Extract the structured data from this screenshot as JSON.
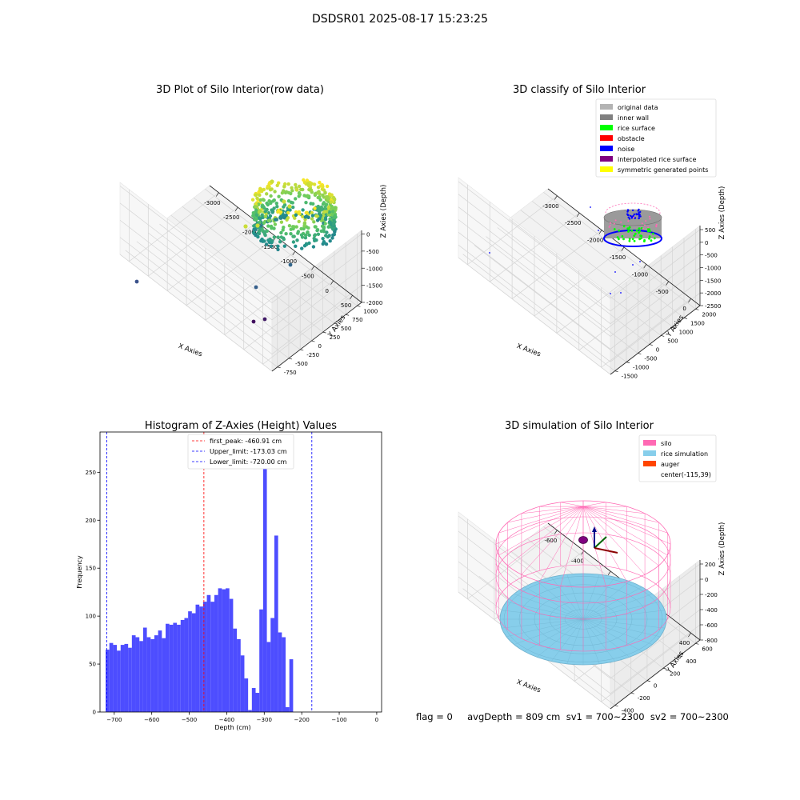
{
  "suptitle": "DSDSR01 2025-08-17 15:23:25",
  "status_line": "flag = 0     avgDepth = 809 cm  sv1 = 700~2300  sv2 = 700~2300",
  "chart_data": [
    {
      "type": "scatter3d",
      "title": "3D Plot of Silo Interior(row data)",
      "xlabel": "X Axies",
      "ylabel": "Y Axies",
      "zlabel": "Z Axies (Depth)",
      "x_ticks": [
        "-3000",
        "-2500",
        "-2000",
        "-1500",
        "-1000",
        "-500",
        "0",
        "500"
      ],
      "y_ticks": [
        "-750",
        "-500",
        "-250",
        "0",
        "250",
        "500",
        "750",
        "1000"
      ],
      "z_ticks": [
        "0",
        "-500",
        "-1000",
        "-1500",
        "-2000"
      ],
      "colormap": "viridis",
      "grid": true
    },
    {
      "type": "scatter3d",
      "title": "3D classify of Silo Interior",
      "xlabel": "X Axies",
      "ylabel": "Y Axies",
      "zlabel": "Z Axies (Depth)",
      "x_ticks": [
        "-3000",
        "-2500",
        "-2000",
        "-1500",
        "-1000",
        "-500",
        "0"
      ],
      "y_ticks": [
        "-1500",
        "-1000",
        "-500",
        "0",
        "500",
        "1000",
        "1500",
        "2000"
      ],
      "z_ticks": [
        "500",
        "0",
        "-500",
        "-1000",
        "-1500",
        "-2000",
        "-2500"
      ],
      "legend_position": "top-right",
      "legend": [
        {
          "label": "original data",
          "color": "#b3b3b3"
        },
        {
          "label": "inner wall",
          "color": "#808080"
        },
        {
          "label": "rice surface",
          "color": "#00ff00"
        },
        {
          "label": "obstacle",
          "color": "#ff0000"
        },
        {
          "label": "noise",
          "color": "#0000ff"
        },
        {
          "label": "interpolated rice surface",
          "color": "#800080"
        },
        {
          "label": "symmetric generated points",
          "color": "#ffff00"
        }
      ],
      "grid": true
    },
    {
      "type": "bar",
      "title": "Histogram of Z-Axies (Height) Values",
      "xlabel": "Depth (cm)",
      "ylabel": "Frequency",
      "bin_width": 10,
      "bin_start": -723,
      "values": [
        65,
        72,
        70,
        64,
        70,
        71,
        67,
        80,
        78,
        74,
        88,
        78,
        76,
        80,
        85,
        77,
        92,
        91,
        93,
        91,
        96,
        98,
        105,
        103,
        112,
        110,
        115,
        122,
        115,
        122,
        129,
        128,
        129,
        118,
        87,
        76,
        59,
        35,
        2,
        25,
        20,
        107,
        279,
        73,
        98,
        184,
        83,
        78,
        5,
        55
      ],
      "xlim": [
        -738,
        13
      ],
      "ylim": [
        0,
        292
      ],
      "x_ticks": [
        -700,
        -600,
        -500,
        -400,
        -300,
        -200,
        -100,
        0
      ],
      "y_ticks": [
        0,
        50,
        100,
        150,
        200,
        250
      ],
      "bar_color": "#4d4dff",
      "vlines": [
        {
          "label": "first_peak: -460.91 cm",
          "x": -460.91,
          "color": "#ff0000"
        },
        {
          "label": "Upper_limit: -173.03 cm",
          "x": -173.03,
          "color": "#0000ff"
        },
        {
          "label": "Lower_limit: -720.00 cm",
          "x": -720.0,
          "color": "#0000ff"
        }
      ],
      "legend_position": "top-center",
      "grid": false
    },
    {
      "type": "surface3d",
      "title": "3D simulation of Silo Interior",
      "xlabel": "X Axies",
      "ylabel": "Y Axies",
      "zlabel": "Z Axies (Depth)",
      "x_ticks": [
        "-600",
        "-400",
        "-200",
        "0",
        "200",
        "400"
      ],
      "y_ticks": [
        "-400",
        "-200",
        "0",
        "200",
        "400",
        "600"
      ],
      "z_ticks": [
        "200",
        "0",
        "-200",
        "-400",
        "-600",
        "-800"
      ],
      "legend_position": "top-right",
      "legend": [
        {
          "label": "silo",
          "color": "#ff69b4"
        },
        {
          "label": "rice simulation",
          "color": "#87ceeb"
        },
        {
          "label": "auger",
          "color": "#ff4500"
        },
        {
          "label": "center(-115,39)",
          "color": ""
        }
      ],
      "grid": true
    }
  ]
}
